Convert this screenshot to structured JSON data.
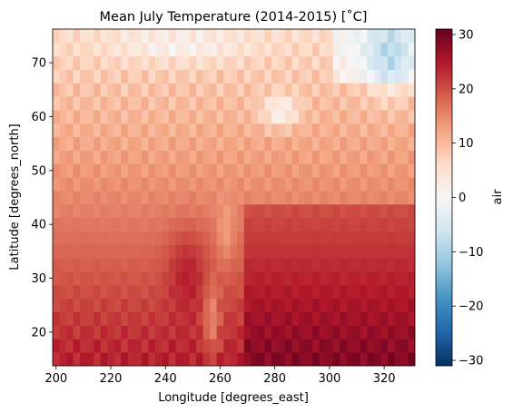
{
  "chart_data": {
    "type": "heatmap",
    "title": "Mean July Temperature (2014-2015) [˚C]",
    "xlabel": "Longitude [degrees_east]",
    "ylabel": "Latitude [degrees_north]",
    "xlim": [
      198.75,
      331.25
    ],
    "ylim": [
      13.75,
      76.25
    ],
    "x_ticks": [
      200,
      220,
      240,
      260,
      280,
      300,
      320
    ],
    "y_ticks": [
      20,
      30,
      40,
      50,
      60,
      70
    ],
    "cell_size_deg": 2.5,
    "grid": false,
    "colorbar": {
      "label": "air",
      "range": [
        -31,
        31
      ],
      "ticks": [
        -30,
        -20,
        -10,
        0,
        10,
        20,
        30
      ],
      "tick_labels": [
        "−30",
        "−20",
        "−10",
        "0",
        "10",
        "20",
        "30"
      ],
      "colormap": "RdBu_r",
      "colormap_stops": [
        "#053061",
        "#2166ac",
        "#4393c3",
        "#92c5de",
        "#d1e5f0",
        "#f7f7f7",
        "#fddbc7",
        "#f4a582",
        "#d6604d",
        "#b2182b",
        "#67001f"
      ]
    }
  }
}
